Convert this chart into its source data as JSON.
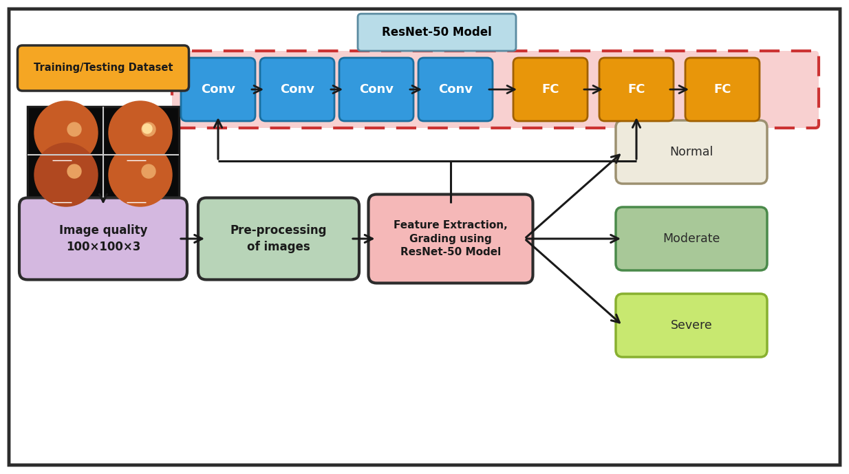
{
  "bg_color": "#ffffff",
  "outer_border_color": "#2c2c2c",
  "conv_color": "#3399dd",
  "conv_text_color": "#ffffff",
  "fc_color": "#e8960a",
  "fc_text_color": "#ffffff",
  "resnet_box_color": "#f8d0d0",
  "resnet_box_border": "#cc3333",
  "resnet_label_bg": "#b8dce8",
  "resnet_label_border": "#5a8aa0",
  "resnet_label_text": "#000000",
  "dataset_box_color": "#f5a623",
  "dataset_box_border": "#2c2c2c",
  "image_quality_color": "#d4b8e0",
  "preprocessing_color": "#b8d4b8",
  "feature_color": "#f5b8b8",
  "normal_color": "#eeeadc",
  "moderate_color": "#a8c898",
  "severe_color": "#c8e870",
  "arrow_color": "#1a1a1a",
  "conv_labels": [
    "Conv",
    "Conv",
    "Conv",
    "Conv"
  ],
  "fc_labels": [
    "FC",
    "FC",
    "FC"
  ],
  "output_labels": [
    "Normal",
    "Moderate",
    "Severe"
  ],
  "dataset_label": "Training/Testing Dataset",
  "quality_label": "Image quality\n100×100×3",
  "preprocessing_label": "Pre-processing\nof images",
  "feature_label": "Feature Extraction,\nGrading using\nResNet-50 Model",
  "resnet_model_label": "ResNet-50 Model"
}
